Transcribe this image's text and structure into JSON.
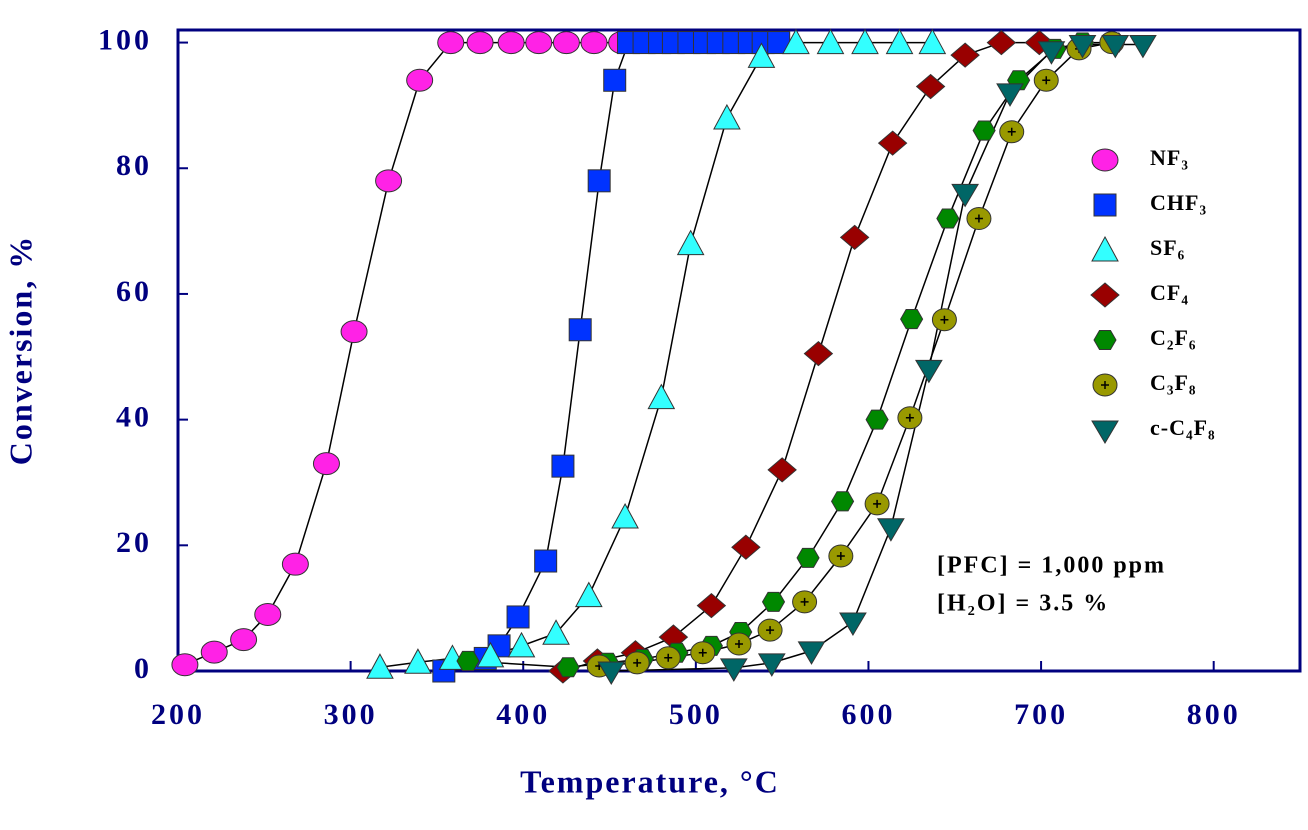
{
  "chart_data": {
    "type": "scatter-line",
    "x_label": "Temperature, °C",
    "y_label": "Conversion, %",
    "xlim": [
      200,
      850
    ],
    "ylim": [
      0,
      102
    ],
    "xticks": [
      200,
      300,
      400,
      500,
      600,
      700,
      800
    ],
    "yticks": [
      0,
      20,
      40,
      60,
      80,
      100
    ],
    "grid": false,
    "legend_position": "right",
    "annotations": [
      "[PFC] = 1,000 ppm",
      "[H₂O] = 3.5 %"
    ],
    "series": [
      {
        "name": "NF₃",
        "color": "#ff22e6",
        "marker": "circle",
        "x": [
          204,
          221,
          238,
          252,
          268,
          286,
          302,
          322,
          340,
          358,
          375,
          393,
          409,
          425,
          441,
          457
        ],
        "values": [
          1,
          3,
          5,
          9,
          17,
          33,
          54,
          78,
          94,
          100,
          100,
          100,
          100,
          100,
          100,
          100
        ]
      },
      {
        "name": "CHF₃",
        "color": "#0033ff",
        "marker": "square",
        "x": [
          354,
          378,
          386,
          397,
          413,
          423,
          433,
          444,
          453,
          461,
          470,
          479,
          487,
          496,
          505,
          513,
          522,
          531,
          539,
          548
        ],
        "values": [
          0,
          2,
          4,
          8.6,
          17.5,
          32.6,
          54.3,
          78,
          94,
          100,
          100,
          100,
          100,
          100,
          100,
          100,
          100,
          100,
          100,
          100
        ]
      },
      {
        "name": "SF₆",
        "color": "#33ffff",
        "marker": "triangle",
        "x": [
          317,
          339,
          359,
          381,
          399,
          419,
          438,
          459,
          480,
          497,
          518,
          538,
          558,
          578,
          598,
          618,
          637
        ],
        "values": [
          0.6,
          1.4,
          2,
          2.4,
          4,
          6,
          12,
          24.5,
          43.5,
          68,
          88,
          97.8,
          100,
          100,
          100,
          100,
          100
        ]
      },
      {
        "name": "CF₄",
        "color": "#990000",
        "marker": "diamond",
        "x": [
          423,
          443,
          465,
          487,
          509,
          529,
          550,
          571,
          592,
          614,
          636,
          656,
          677,
          699
        ],
        "values": [
          0,
          1.6,
          2.9,
          5.4,
          10.4,
          19.7,
          32,
          50.5,
          69,
          84,
          93,
          98,
          100,
          100
        ]
      },
      {
        "name": "C₂F₆",
        "color": "#008800",
        "marker": "hexagon",
        "x": [
          368,
          426,
          449,
          469,
          489,
          509,
          526,
          545,
          565,
          585,
          605,
          625,
          646,
          667,
          687,
          708,
          724,
          742
        ],
        "values": [
          1.6,
          0.6,
          1.3,
          1.9,
          2.9,
          4,
          6.2,
          11,
          18,
          27,
          40,
          56,
          72,
          86,
          94,
          99,
          100,
          100
        ]
      },
      {
        "name": "C₃F₈",
        "color": "#999900",
        "marker": "circle-plus",
        "x": [
          444,
          466,
          484,
          504,
          525,
          543,
          563,
          584,
          605,
          624,
          644,
          664,
          683,
          703,
          722,
          741
        ],
        "values": [
          0.8,
          1.3,
          2.1,
          2.9,
          4.3,
          6.5,
          11,
          18.3,
          26.6,
          40.3,
          55.9,
          72,
          85.8,
          94,
          99,
          100
        ]
      },
      {
        "name": "c-C₄F₈",
        "color": "#006666",
        "marker": "triangle-down",
        "x": [
          451,
          522,
          544,
          567,
          591,
          613,
          635,
          656,
          682,
          706,
          724,
          743,
          759
        ],
        "values": [
          0,
          0.5,
          1.3,
          3.2,
          7.8,
          22.8,
          48,
          76,
          92,
          98.7,
          99.7,
          99.7,
          99.7
        ]
      }
    ]
  }
}
